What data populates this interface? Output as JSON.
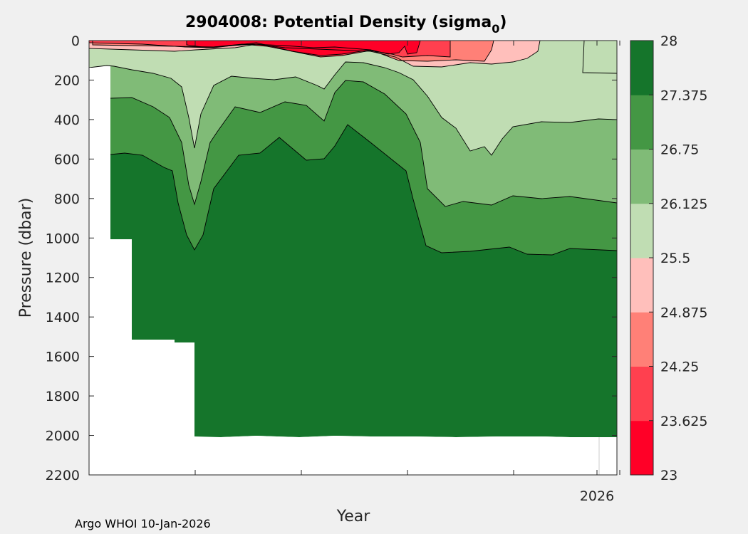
{
  "chart_data": {
    "type": "filled-contour",
    "title_main": "2904008: Potential Density (sigma",
    "title_sub": "0",
    "title_end": ")",
    "xlabel": "Year",
    "ylabel": "Pressure (dbar)",
    "ylim": [
      0,
      2200
    ],
    "y_ticks": [
      0,
      200,
      400,
      600,
      800,
      1000,
      1200,
      1400,
      1600,
      1800,
      2000,
      2200
    ],
    "x_ticks": [
      {
        "label": ""
      },
      {
        "label": ""
      },
      {
        "label": ""
      },
      {
        "label": ""
      },
      {
        "label": ""
      },
      {
        "label": ""
      },
      {
        "label": "2026"
      }
    ],
    "levels": [
      23,
      23.625,
      24.25,
      24.875,
      25.5,
      26.125,
      26.75,
      27.375,
      28
    ],
    "level_labels": [
      "23",
      "23.625",
      "24.25",
      "24.875",
      "25.5",
      "26.125",
      "26.75",
      "27.375",
      "28"
    ],
    "colors": [
      "#ff0027",
      "#ff404f",
      "#ff8077",
      "#ffbfbb",
      "#c0ddb3",
      "#80bb77",
      "#449744",
      "#15752b"
    ],
    "footer": "Argo WHOI 10-Jan-2026"
  }
}
